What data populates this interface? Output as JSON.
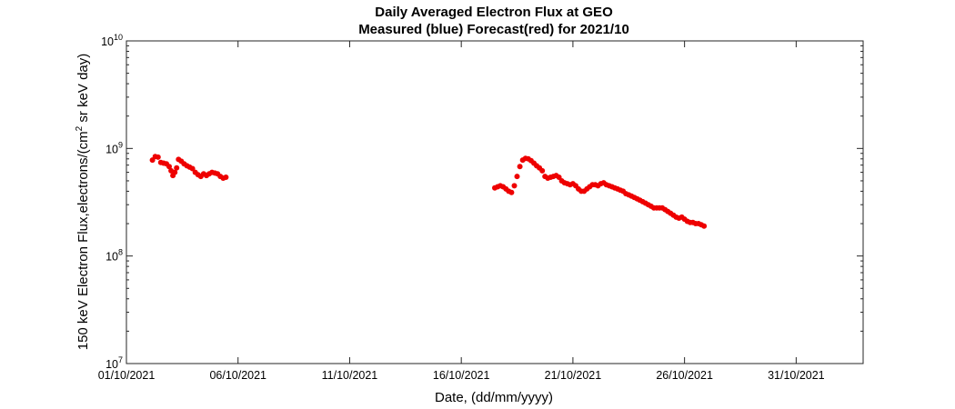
{
  "chart_data": {
    "type": "scatter",
    "title": "Daily Averaged Electron Flux at GEO",
    "subtitle": "Measured (blue) Forecast(red) for 2021/10",
    "xlabel": "Date, (dd/mm/yyyy)",
    "ylabel_main": "150 keV Electron Flux,electrons/(cm",
    "ylabel_sup": "2",
    "ylabel_tail": " sr keV day)",
    "x_scale": "date",
    "xlim": [
      "2021-10-01",
      "2021-11-03"
    ],
    "x_ticks": [
      {
        "date": "2021-10-01",
        "label": "01/10/2021"
      },
      {
        "date": "2021-10-06",
        "label": "06/10/2021"
      },
      {
        "date": "2021-10-11",
        "label": "11/10/2021"
      },
      {
        "date": "2021-10-16",
        "label": "16/10/2021"
      },
      {
        "date": "2021-10-21",
        "label": "21/10/2021"
      },
      {
        "date": "2021-10-26",
        "label": "26/10/2021"
      },
      {
        "date": "2021-10-31",
        "label": "31/10/2021"
      }
    ],
    "y_scale": "log",
    "ylim": [
      10000000.0,
      10000000000.0
    ],
    "y_ticks": [
      {
        "value": 10000000.0,
        "base": "10",
        "exp": "7"
      },
      {
        "value": 100000000.0,
        "base": "10",
        "exp": "8"
      },
      {
        "value": 1000000000.0,
        "base": "10",
        "exp": "9"
      },
      {
        "value": 10000000000.0,
        "base": "10",
        "exp": "10"
      }
    ],
    "grid": false,
    "legend": "none",
    "series": [
      {
        "color": "#ee0000",
        "points": [
          [
            "2021-10-02T04:00",
            780000000.0
          ],
          [
            "2021-10-02T07:00",
            840000000.0
          ],
          [
            "2021-10-02T10:00",
            830000000.0
          ],
          [
            "2021-10-02T13:00",
            740000000.0
          ],
          [
            "2021-10-02T16:00",
            730000000.0
          ],
          [
            "2021-10-02T19:00",
            720000000.0
          ],
          [
            "2021-10-02T22:00",
            680000000.0
          ],
          [
            "2021-10-03T00:00",
            620000000.0
          ],
          [
            "2021-10-03T02:00",
            560000000.0
          ],
          [
            "2021-10-03T04:00",
            600000000.0
          ],
          [
            "2021-10-03T06:00",
            660000000.0
          ],
          [
            "2021-10-03T08:00",
            790000000.0
          ],
          [
            "2021-10-03T11:00",
            760000000.0
          ],
          [
            "2021-10-03T14:00",
            720000000.0
          ],
          [
            "2021-10-03T17:00",
            690000000.0
          ],
          [
            "2021-10-03T20:00",
            670000000.0
          ],
          [
            "2021-10-03T23:00",
            650000000.0
          ],
          [
            "2021-10-04T02:00",
            600000000.0
          ],
          [
            "2021-10-04T05:00",
            570000000.0
          ],
          [
            "2021-10-04T08:00",
            550000000.0
          ],
          [
            "2021-10-04T11:00",
            580000000.0
          ],
          [
            "2021-10-04T14:00",
            560000000.0
          ],
          [
            "2021-10-04T17:00",
            580000000.0
          ],
          [
            "2021-10-04T20:00",
            600000000.0
          ],
          [
            "2021-10-04T23:00",
            590000000.0
          ],
          [
            "2021-10-05T02:00",
            580000000.0
          ],
          [
            "2021-10-05T05:00",
            550000000.0
          ],
          [
            "2021-10-05T08:00",
            530000000.0
          ],
          [
            "2021-10-05T11:00",
            540000000.0
          ],
          [
            "2021-10-17T12:00",
            430000000.0
          ],
          [
            "2021-10-17T15:00",
            440000000.0
          ],
          [
            "2021-10-17T18:00",
            450000000.0
          ],
          [
            "2021-10-17T21:00",
            440000000.0
          ],
          [
            "2021-10-18T00:00",
            420000000.0
          ],
          [
            "2021-10-18T03:00",
            400000000.0
          ],
          [
            "2021-10-18T06:00",
            390000000.0
          ],
          [
            "2021-10-18T09:00",
            450000000.0
          ],
          [
            "2021-10-18T12:00",
            550000000.0
          ],
          [
            "2021-10-18T15:00",
            680000000.0
          ],
          [
            "2021-10-18T18:00",
            780000000.0
          ],
          [
            "2021-10-18T21:00",
            810000000.0
          ],
          [
            "2021-10-19T00:00",
            800000000.0
          ],
          [
            "2021-10-19T03:00",
            770000000.0
          ],
          [
            "2021-10-19T06:00",
            730000000.0
          ],
          [
            "2021-10-19T09:00",
            690000000.0
          ],
          [
            "2021-10-19T12:00",
            660000000.0
          ],
          [
            "2021-10-19T15:00",
            620000000.0
          ],
          [
            "2021-10-19T18:00",
            550000000.0
          ],
          [
            "2021-10-19T21:00",
            530000000.0
          ],
          [
            "2021-10-20T00:00",
            540000000.0
          ],
          [
            "2021-10-20T03:00",
            550000000.0
          ],
          [
            "2021-10-20T06:00",
            560000000.0
          ],
          [
            "2021-10-20T09:00",
            540000000.0
          ],
          [
            "2021-10-20T12:00",
            500000000.0
          ],
          [
            "2021-10-20T15:00",
            480000000.0
          ],
          [
            "2021-10-20T18:00",
            470000000.0
          ],
          [
            "2021-10-20T21:00",
            460000000.0
          ],
          [
            "2021-10-21T00:00",
            470000000.0
          ],
          [
            "2021-10-21T03:00",
            450000000.0
          ],
          [
            "2021-10-21T06:00",
            420000000.0
          ],
          [
            "2021-10-21T09:00",
            400000000.0
          ],
          [
            "2021-10-21T12:00",
            400000000.0
          ],
          [
            "2021-10-21T15:00",
            420000000.0
          ],
          [
            "2021-10-21T18:00",
            440000000.0
          ],
          [
            "2021-10-21T21:00",
            460000000.0
          ],
          [
            "2021-10-22T00:00",
            460000000.0
          ],
          [
            "2021-10-22T03:00",
            450000000.0
          ],
          [
            "2021-10-22T06:00",
            470000000.0
          ],
          [
            "2021-10-22T09:00",
            480000000.0
          ],
          [
            "2021-10-22T12:00",
            460000000.0
          ],
          [
            "2021-10-22T15:00",
            450000000.0
          ],
          [
            "2021-10-22T18:00",
            440000000.0
          ],
          [
            "2021-10-22T21:00",
            430000000.0
          ],
          [
            "2021-10-23T00:00",
            420000000.0
          ],
          [
            "2021-10-23T03:00",
            410000000.0
          ],
          [
            "2021-10-23T06:00",
            400000000.0
          ],
          [
            "2021-10-23T09:00",
            380000000.0
          ],
          [
            "2021-10-23T12:00",
            370000000.0
          ],
          [
            "2021-10-23T15:00",
            360000000.0
          ],
          [
            "2021-10-23T18:00",
            350000000.0
          ],
          [
            "2021-10-23T21:00",
            340000000.0
          ],
          [
            "2021-10-24T00:00",
            330000000.0
          ],
          [
            "2021-10-24T03:00",
            320000000.0
          ],
          [
            "2021-10-24T06:00",
            310000000.0
          ],
          [
            "2021-10-24T09:00",
            300000000.0
          ],
          [
            "2021-10-24T12:00",
            290000000.0
          ],
          [
            "2021-10-24T15:00",
            280000000.0
          ],
          [
            "2021-10-24T18:00",
            280000000.0
          ],
          [
            "2021-10-24T21:00",
            280000000.0
          ],
          [
            "2021-10-25T00:00",
            280000000.0
          ],
          [
            "2021-10-25T03:00",
            270000000.0
          ],
          [
            "2021-10-25T06:00",
            260000000.0
          ],
          [
            "2021-10-25T09:00",
            250000000.0
          ],
          [
            "2021-10-25T12:00",
            240000000.0
          ],
          [
            "2021-10-25T15:00",
            230000000.0
          ],
          [
            "2021-10-25T18:00",
            225000000.0
          ],
          [
            "2021-10-25T21:00",
            230000000.0
          ],
          [
            "2021-10-26T00:00",
            220000000.0
          ],
          [
            "2021-10-26T03:00",
            210000000.0
          ],
          [
            "2021-10-26T06:00",
            205000000.0
          ],
          [
            "2021-10-26T09:00",
            205000000.0
          ],
          [
            "2021-10-26T12:00",
            200000000.0
          ],
          [
            "2021-10-26T15:00",
            200000000.0
          ],
          [
            "2021-10-26T18:00",
            195000000.0
          ],
          [
            "2021-10-26T21:00",
            190000000.0
          ]
        ]
      }
    ]
  }
}
